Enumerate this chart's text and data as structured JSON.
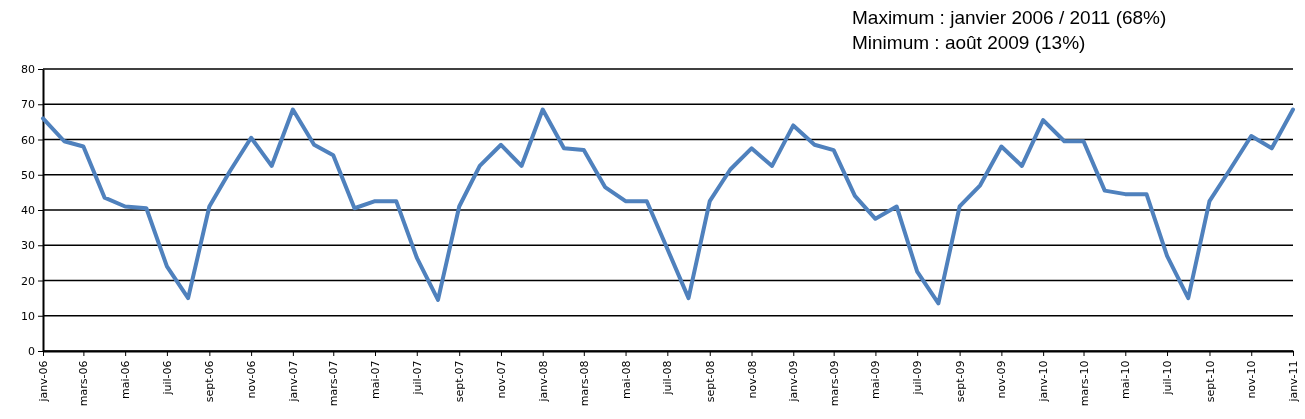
{
  "chart_data": {
    "type": "line",
    "annotations": [
      "Maximum : janvier 2006 / 2011 (68%)",
      "Minimum : août 2009 (13%)"
    ],
    "x": [
      "2006-01",
      "2006-02",
      "2006-03",
      "2006-04",
      "2006-05",
      "2006-06",
      "2006-07",
      "2006-08",
      "2006-09",
      "2006-10",
      "2006-11",
      "2006-12",
      "2007-01",
      "2007-02",
      "2007-03",
      "2007-04",
      "2007-05",
      "2007-06",
      "2007-07",
      "2007-08",
      "2007-09",
      "2007-10",
      "2007-11",
      "2007-12",
      "2008-01",
      "2008-02",
      "2008-03",
      "2008-04",
      "2008-05",
      "2008-06",
      "2008-07",
      "2008-08",
      "2008-09",
      "2008-10",
      "2008-11",
      "2008-12",
      "2009-01",
      "2009-02",
      "2009-03",
      "2009-04",
      "2009-05",
      "2009-06",
      "2009-07",
      "2009-08",
      "2009-09",
      "2009-10",
      "2009-11",
      "2009-12",
      "2010-01",
      "2010-02",
      "2010-03",
      "2010-04",
      "2010-05",
      "2010-06",
      "2010-07",
      "2010-08",
      "2010-09",
      "2010-10",
      "2010-11",
      "2010-12",
      "2011-01"
    ],
    "series": [
      {
        "color": "#4f81bd",
        "values": [
          66,
          59.5,
          58,
          43.5,
          41,
          40.5,
          24,
          15,
          41,
          51,
          60.5,
          52.5,
          68.5,
          58.5,
          55.5,
          40.5,
          42.5,
          42.5,
          26.5,
          14.5,
          41,
          52.5,
          58.5,
          52.5,
          68.5,
          57.5,
          57,
          46.5,
          42.5,
          42.5,
          29,
          15,
          42.5,
          51.5,
          57.5,
          52.5,
          64,
          58.5,
          57,
          44,
          37.5,
          41,
          22.5,
          13.5,
          41,
          47,
          58,
          52.5,
          65.5,
          59.5,
          59.5,
          45.5,
          44.5,
          44.5,
          27,
          15,
          42.5,
          51.5,
          61,
          57.5,
          68.5
        ]
      }
    ],
    "xlim": [
      "2006-01",
      "2011-01"
    ],
    "xticks": [
      {
        "value": "2006-01",
        "label": "janv-06"
      },
      {
        "value": "2006-03",
        "label": "mars-06"
      },
      {
        "value": "2006-05",
        "label": "mai-06"
      },
      {
        "value": "2006-07",
        "label": "juil-06"
      },
      {
        "value": "2006-09",
        "label": "sept-06"
      },
      {
        "value": "2006-11",
        "label": "nov-06"
      },
      {
        "value": "2007-01",
        "label": "janv-07"
      },
      {
        "value": "2007-03",
        "label": "mars-07"
      },
      {
        "value": "2007-05",
        "label": "mai-07"
      },
      {
        "value": "2007-07",
        "label": "juil-07"
      },
      {
        "value": "2007-09",
        "label": "sept-07"
      },
      {
        "value": "2007-11",
        "label": "nov-07"
      },
      {
        "value": "2008-01",
        "label": "janv-08"
      },
      {
        "value": "2008-03",
        "label": "mars-08"
      },
      {
        "value": "2008-05",
        "label": "mai-08"
      },
      {
        "value": "2008-07",
        "label": "juil-08"
      },
      {
        "value": "2008-09",
        "label": "sept-08"
      },
      {
        "value": "2008-11",
        "label": "nov-08"
      },
      {
        "value": "2009-01",
        "label": "janv-09"
      },
      {
        "value": "2009-03",
        "label": "mars-09"
      },
      {
        "value": "2009-05",
        "label": "mai-09"
      },
      {
        "value": "2009-07",
        "label": "juil-09"
      },
      {
        "value": "2009-09",
        "label": "sept-09"
      },
      {
        "value": "2009-11",
        "label": "nov-09"
      },
      {
        "value": "2010-01",
        "label": "janv-10"
      },
      {
        "value": "2010-03",
        "label": "mars-10"
      },
      {
        "value": "2010-05",
        "label": "mai-10"
      },
      {
        "value": "2010-07",
        "label": "juil-10"
      },
      {
        "value": "2010-09",
        "label": "sept-10"
      },
      {
        "value": "2010-11",
        "label": "nov-10"
      },
      {
        "value": "2011-01",
        "label": "janv-11"
      }
    ],
    "ylim": [
      0,
      80
    ],
    "yticks": [
      0,
      10,
      20,
      30,
      40,
      50,
      60,
      70,
      80
    ],
    "grid": "y",
    "marker": "none",
    "line_style": "solid"
  }
}
